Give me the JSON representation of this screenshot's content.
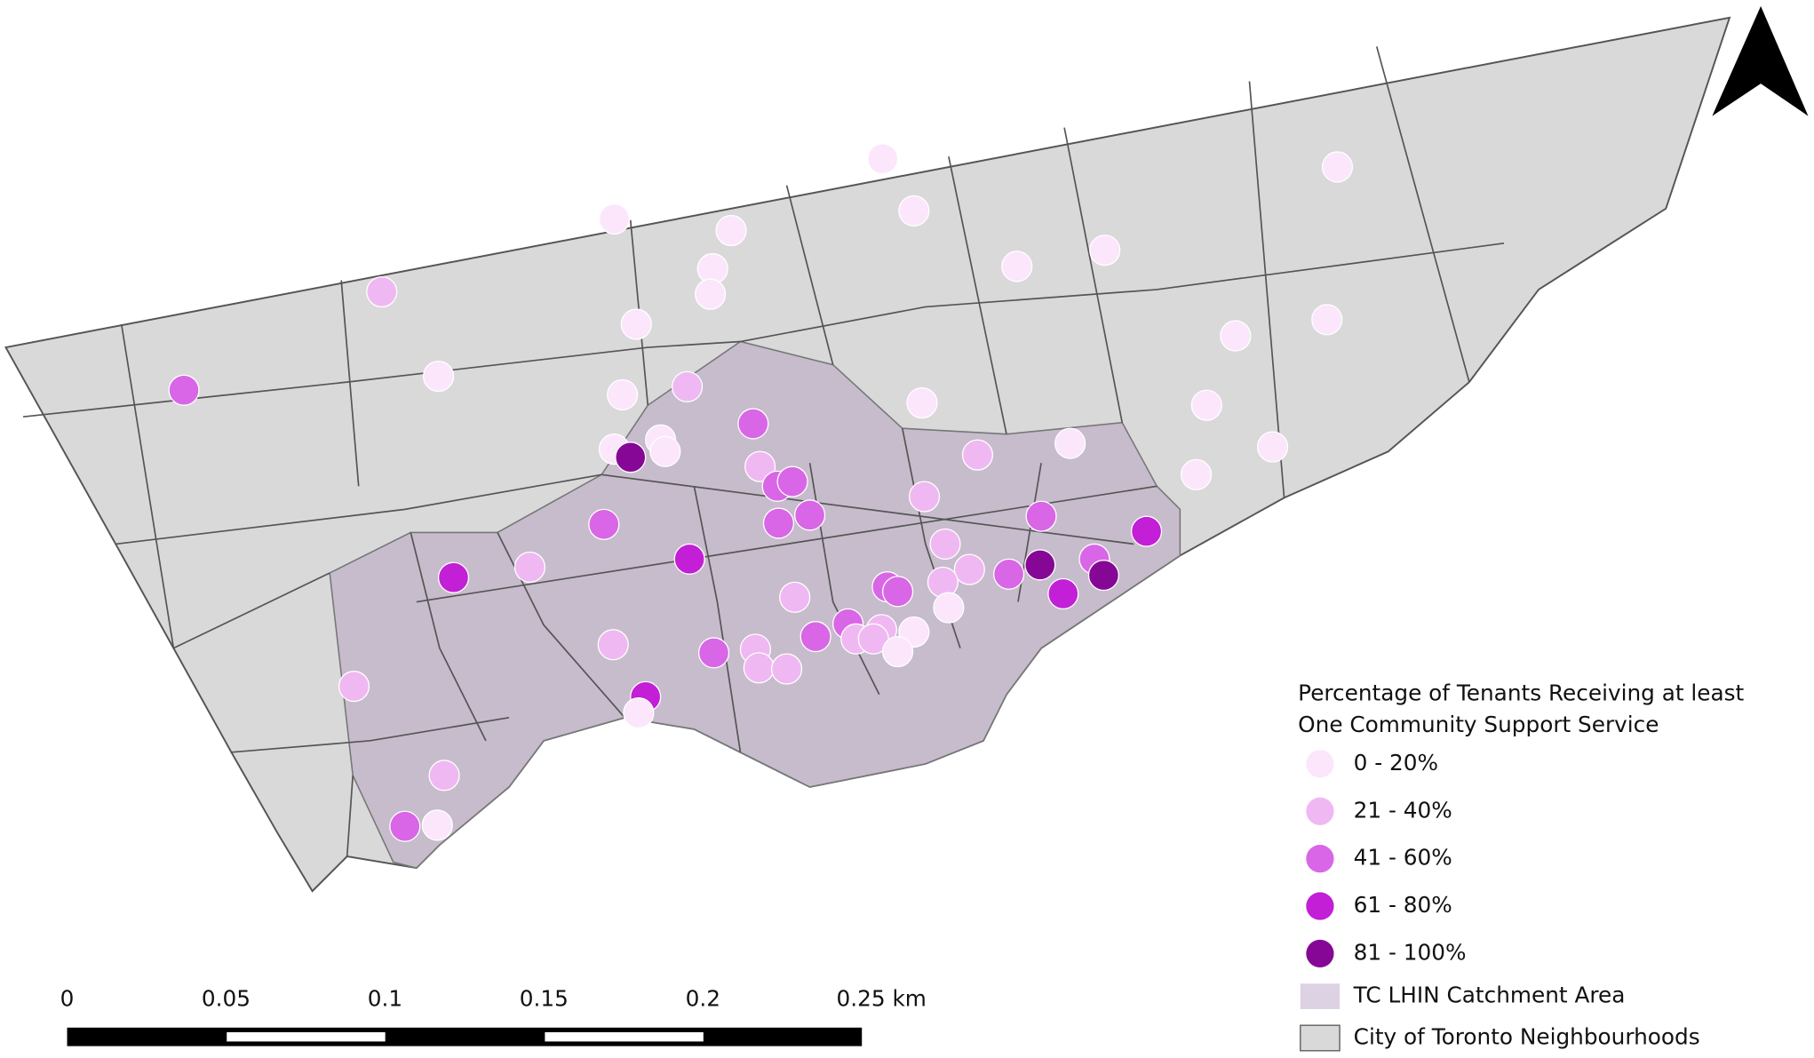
{
  "legend": {
    "title_lines": [
      "Percentage of Tenants Receiving at least",
      "One Community Support Service"
    ],
    "classes": [
      "0 - 20%",
      "21 - 40%",
      "41 - 60%",
      "61 - 80%",
      "81 - 100%"
    ],
    "areas": [
      "TC LHIN Catchment Area",
      "City of Toronto Neighbourhoods"
    ]
  },
  "scale_bar": {
    "labels": [
      "0",
      "0.05",
      "0.1",
      "0.15",
      "0.2",
      "0.25 km"
    ]
  }
}
